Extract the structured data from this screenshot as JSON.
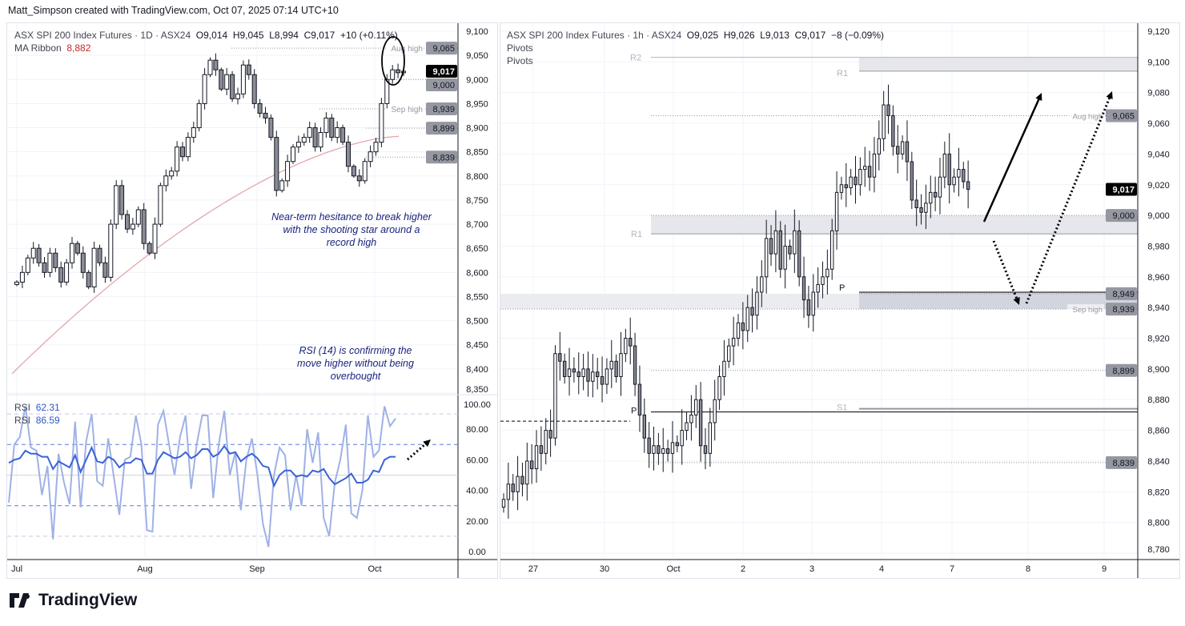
{
  "credit": "Matt_Simpson created with TradingView.com, Oct 07, 2025 07:14 UTC+10",
  "brand": "TradingView",
  "colors": {
    "bull": "#ffffff",
    "bear": "#8a8d96",
    "ma": "#e3a6ad",
    "rsi": "#3a63d8",
    "rsi_fast": "#9fb1e6",
    "annotation": "#1a237e",
    "label_bg": "#9598a1"
  },
  "chart_data": [
    {
      "type": "candlestick",
      "title": "ASX SPI 200 Index Futures · 1D · ASX24",
      "ohlc_header": {
        "open": "O9,014",
        "high": "H9,045",
        "low": "L8,994",
        "close": "C9,017",
        "change": "+10 (+0.11%)"
      },
      "indicator": {
        "name": "MA Ribbon",
        "value": "8,882"
      },
      "ylim": [
        8350,
        9100
      ],
      "yticks": [
        "9,100",
        "9,050",
        "9,000",
        "8,950",
        "8,900",
        "8,850",
        "8,800",
        "8,750",
        "8,700",
        "8,650",
        "8,600",
        "8,550",
        "8,500",
        "8,450",
        "8,400",
        "8,350"
      ],
      "xticks": [
        "Jul",
        "Aug",
        "Sep",
        "Oct"
      ],
      "closes": [
        8580,
        8600,
        8630,
        8650,
        8620,
        8600,
        8640,
        8610,
        8580,
        8620,
        8660,
        8640,
        8600,
        8570,
        8650,
        8620,
        8590,
        8700,
        8780,
        8720,
        8690,
        8700,
        8730,
        8660,
        8640,
        8700,
        8780,
        8800,
        8810,
        8860,
        8840,
        8880,
        8900,
        8950,
        9010,
        9040,
        9020,
        8980,
        9010,
        8960,
        8970,
        9030,
        9010,
        8950,
        8930,
        8920,
        8880,
        8770,
        8790,
        8830,
        8860,
        8870,
        8880,
        8900,
        8860,
        8890,
        8920,
        8880,
        8900,
        8870,
        8820,
        8800,
        8790,
        8830,
        8850,
        8870,
        8950,
        9000,
        9020,
        9014,
        9017
      ],
      "ma_start": 8390,
      "ma_end": 8882,
      "levels": [
        {
          "label": "Aug high",
          "price": 9065,
          "tag": "9,065"
        },
        {
          "label": "",
          "price": 9000,
          "tag": "9,000"
        },
        {
          "label": "Sep high",
          "price": 8939,
          "tag": "8,939"
        },
        {
          "label": "",
          "price": 8899,
          "tag": "8,899"
        },
        {
          "label": "",
          "price": 8839,
          "tag": "8,839"
        }
      ],
      "last_price": {
        "price": 9017,
        "tag": "9,017"
      },
      "annotations": [
        "Near-term hesitance to break higher with the shooting star around a record high",
        "RSI (14) is confirming the move higher without being overbought"
      ],
      "rsi": {
        "labels": [
          {
            "name": "RSI",
            "value": "62.31"
          },
          {
            "name": "RSI",
            "value": "86.59"
          }
        ],
        "ylim": [
          0,
          100
        ],
        "yticks": [
          "100.00",
          "80.00",
          "60.00",
          "40.00",
          "20.00",
          "0.00"
        ],
        "rsi14": [
          58,
          60,
          61,
          66,
          64,
          64,
          62,
          62,
          54,
          59,
          57,
          55,
          63,
          52,
          60,
          68,
          59,
          58,
          62,
          60,
          55,
          58,
          58,
          61,
          60,
          51,
          51,
          60,
          65,
          63,
          61,
          62,
          65,
          61,
          63,
          67,
          67,
          62,
          64,
          69,
          64,
          65,
          59,
          62,
          64,
          61,
          56,
          55,
          43,
          50,
          53,
          53,
          49,
          50,
          49,
          53,
          52,
          54,
          48,
          44,
          46,
          48,
          51,
          45,
          45,
          47,
          53,
          52,
          60,
          62,
          62
        ],
        "rsi_fast": [
          32,
          70,
          75,
          95,
          68,
          66,
          37,
          56,
          8,
          64,
          45,
          31,
          85,
          29,
          72,
          90,
          46,
          43,
          74,
          49,
          24,
          60,
          62,
          89,
          70,
          14,
          13,
          83,
          92,
          70,
          50,
          75,
          89,
          41,
          70,
          89,
          89,
          35,
          70,
          92,
          50,
          65,
          27,
          60,
          74,
          50,
          18,
          3,
          50,
          68,
          63,
          27,
          50,
          30,
          80,
          58,
          78,
          22,
          10,
          45,
          60,
          83,
          25,
          22,
          40,
          89,
          62,
          66,
          95,
          82,
          87
        ]
      }
    },
    {
      "type": "candlestick",
      "title": "ASX SPI 200 Index Futures · 1h · ASX24",
      "ohlc_header": {
        "open": "O9,025",
        "high": "H9,026",
        "low": "L9,013",
        "close": "C9,017",
        "change": "−8 (−0.09%)"
      },
      "indicators": [
        "Pivots",
        "Pivots"
      ],
      "ylim": [
        8780,
        9120
      ],
      "yticks": [
        "9,120",
        "9,100",
        "9,080",
        "9,060",
        "9,040",
        "9,020",
        "9,000",
        "8,980",
        "8,960",
        "8,940",
        "8,920",
        "8,900",
        "8,880",
        "8,860",
        "8,840",
        "8,820",
        "8,800",
        "8,780"
      ],
      "xticks": [
        "27",
        "30",
        "Oct",
        "2",
        "3",
        "4",
        "7",
        "8",
        "9"
      ],
      "closes": [
        8815,
        8825,
        8820,
        8830,
        8825,
        8840,
        8835,
        8850,
        8845,
        8860,
        8855,
        8910,
        8905,
        8895,
        8900,
        8898,
        8895,
        8900,
        8892,
        8898,
        8895,
        8890,
        8900,
        8905,
        8895,
        8910,
        8920,
        8915,
        8890,
        8870,
        8855,
        8845,
        8850,
        8845,
        8848,
        8845,
        8852,
        8850,
        8860,
        8865,
        8870,
        8880,
        8850,
        8845,
        8865,
        8880,
        8895,
        8905,
        8915,
        8920,
        8930,
        8925,
        8940,
        8935,
        8950,
        8960,
        8985,
        8975,
        8990,
        8965,
        8980,
        8975,
        8990,
        8960,
        8945,
        8935,
        8950,
        8955,
        8960,
        8965,
        8990,
        9015,
        9020,
        9018,
        9025,
        9020,
        9030,
        9032,
        9025,
        9040,
        9050,
        9072,
        9065,
        9045,
        9040,
        9048,
        9035,
        9010,
        9005,
        9002,
        9008,
        9015,
        9012,
        9025,
        9040,
        9020,
        9025,
        9030,
        9022,
        9017
      ],
      "pivots": [
        {
          "label": "R2",
          "price": 9103
        },
        {
          "label": "R1",
          "price": 9094
        },
        {
          "label": "R1",
          "price": 8988
        },
        {
          "label": "P",
          "price": 8950
        },
        {
          "label": "P",
          "price": 8872
        },
        {
          "label": "S1",
          "price": 8873
        }
      ],
      "levels": [
        {
          "label": "Aug high",
          "price": 9065,
          "tag": "9,065"
        },
        {
          "label": "",
          "price": 9000,
          "tag": "9,000"
        },
        {
          "label": "",
          "price": 8949,
          "tag": "8,949"
        },
        {
          "label": "Sep high",
          "price": 8939,
          "tag": "8,939"
        },
        {
          "label": "",
          "price": 8899,
          "tag": "8,899"
        },
        {
          "label": "",
          "price": 8839,
          "tag": "8,839"
        }
      ],
      "last_price": {
        "price": 9017,
        "tag": "9,017"
      }
    }
  ]
}
